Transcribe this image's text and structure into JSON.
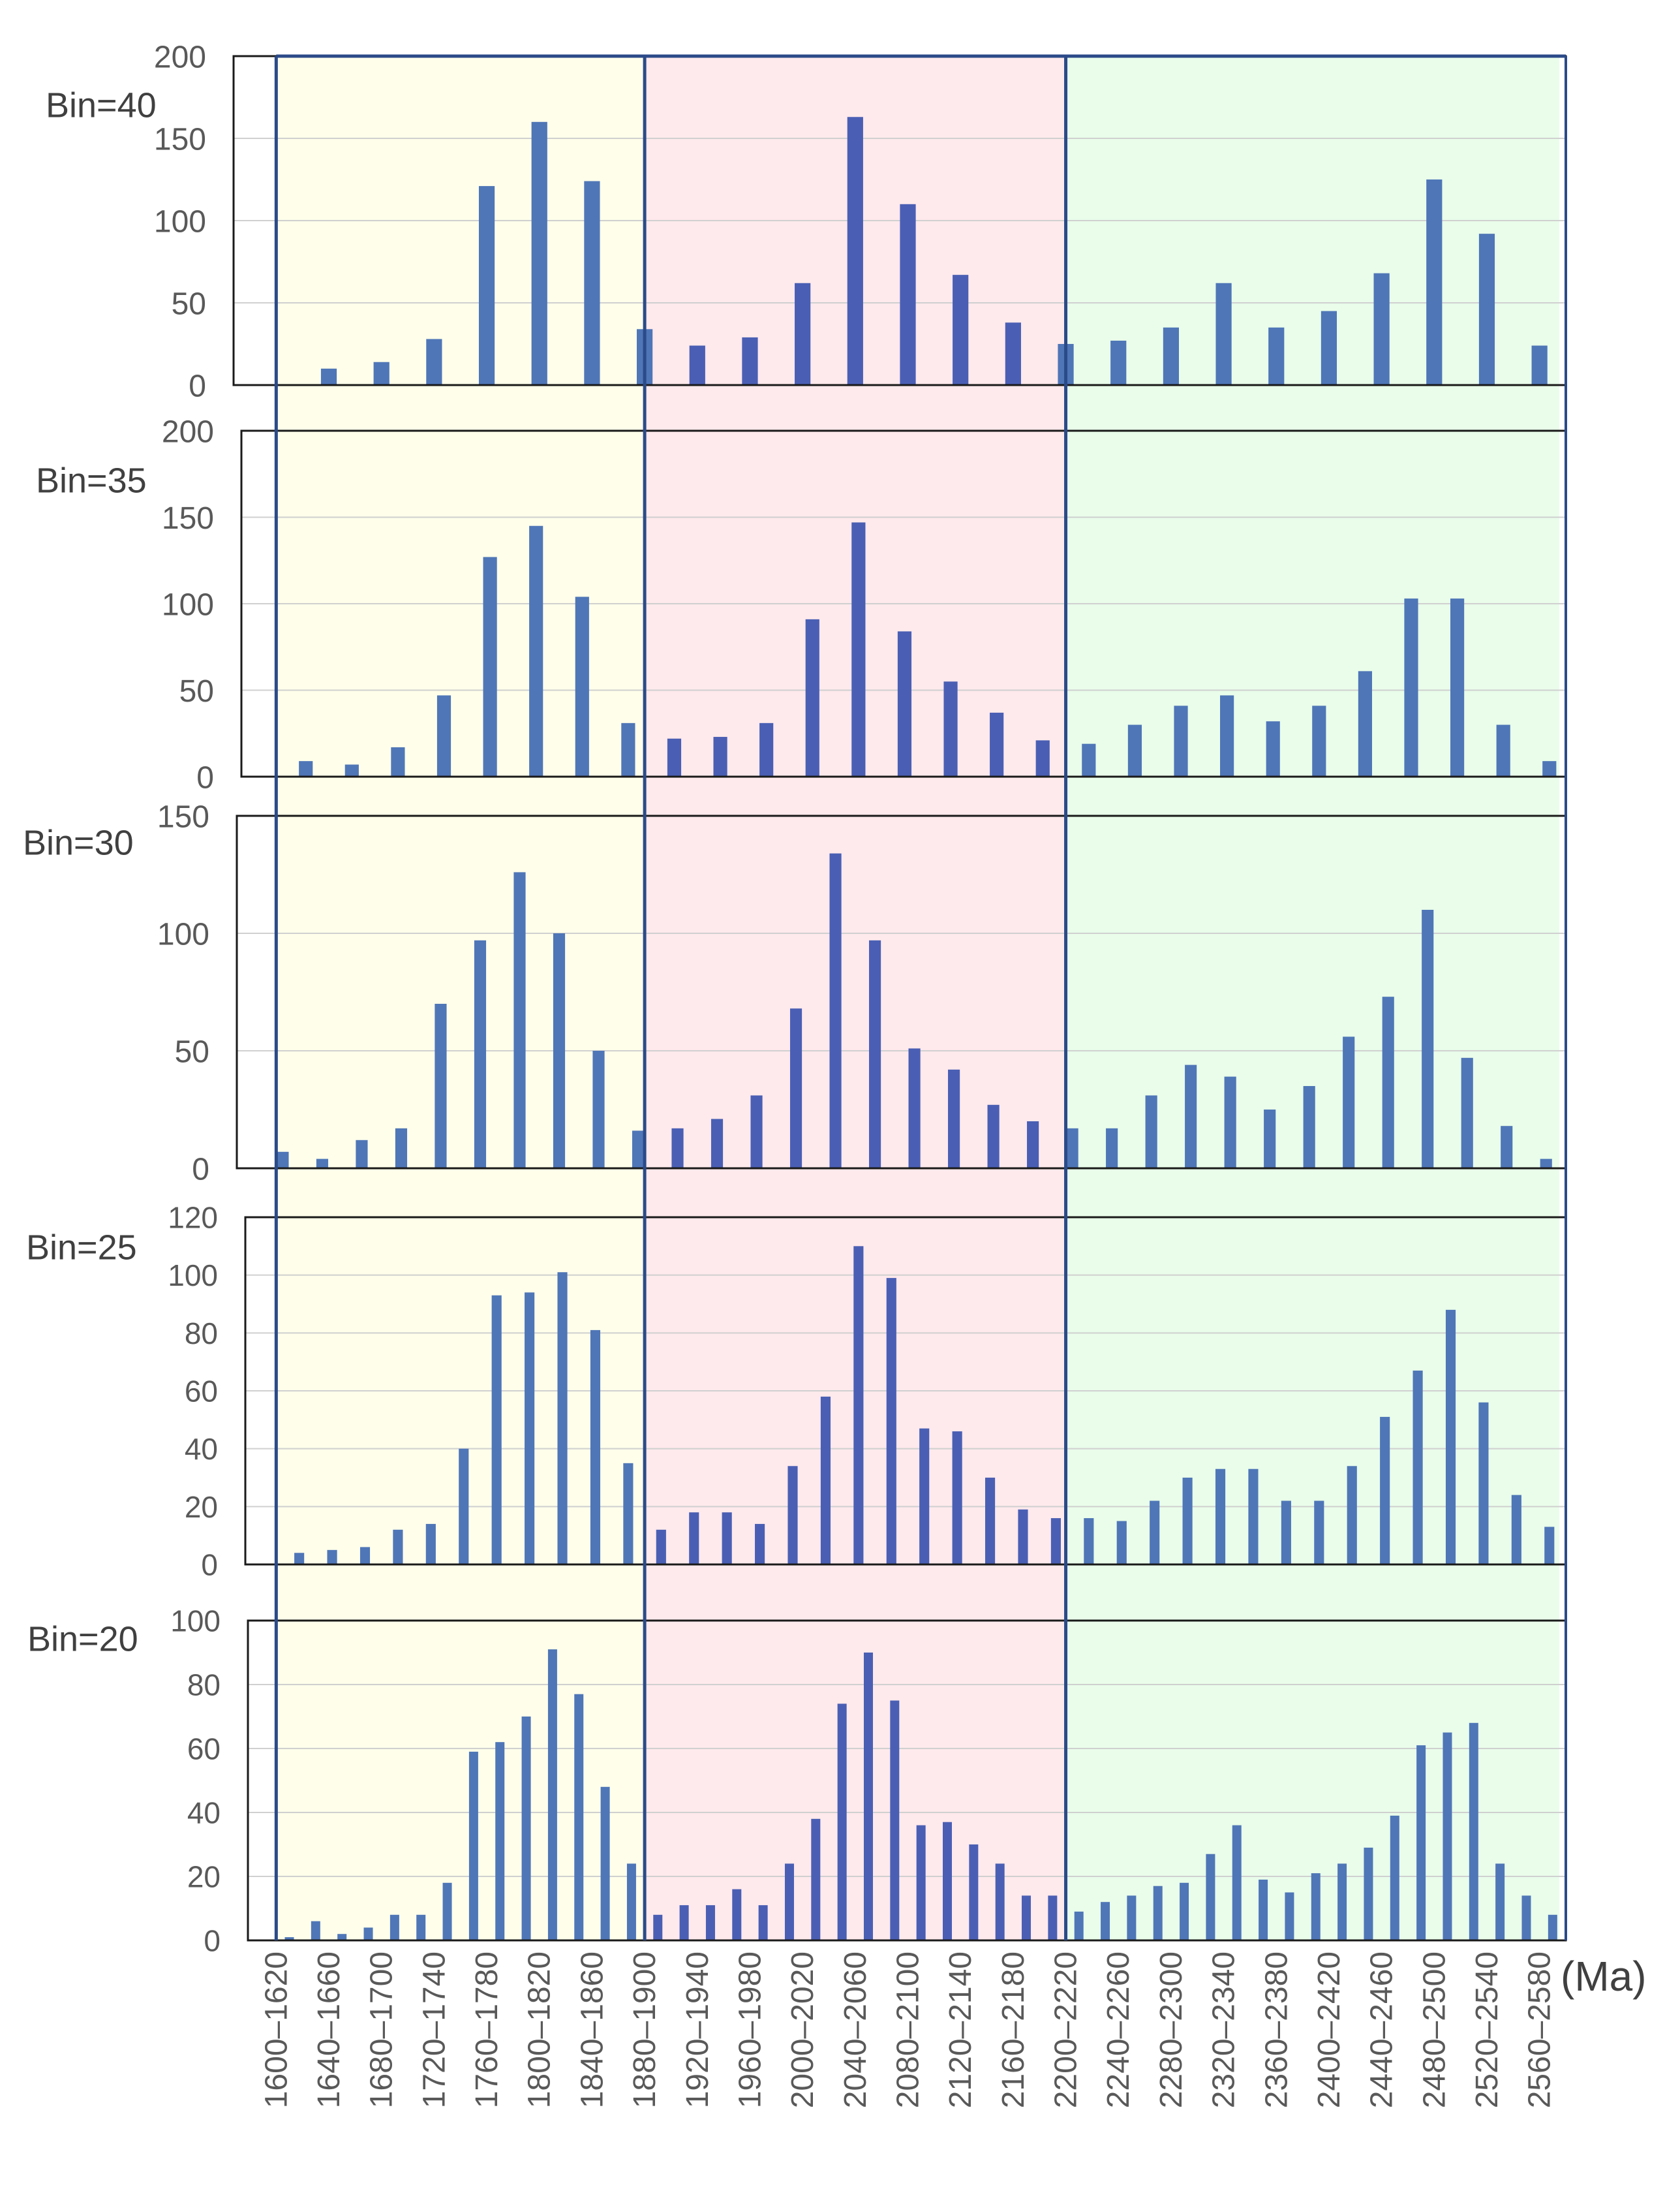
{
  "unit_label": "(Ma)",
  "colors": {
    "band_1": "#fefeea",
    "band_2": "#fee9ec",
    "band_3": "#e9fdea",
    "bar": "#4f76b7",
    "bar_mid": "#4a5fb4",
    "divider": "#2b4a88",
    "grid": "#d0d0d0",
    "tick_text": "#595959",
    "title_text": "#404040"
  },
  "x_tick_labels": [
    "1600–1620",
    "1640–1660",
    "1680–1700",
    "1720–1740",
    "1760–1780",
    "1800–1820",
    "1840–1860",
    "1880–1900",
    "1920–1940",
    "1960–1980",
    "2000–2020",
    "2040–2060",
    "2080–2100",
    "2120–2140",
    "2160–2180",
    "2200–2220",
    "2240–2260",
    "2280–2300",
    "2320–2340",
    "2360–2380",
    "2400–2420",
    "2440–2460",
    "2480–2500",
    "2520–2540",
    "2560–2580"
  ],
  "bands": [
    {
      "from": 1620,
      "to": 1900
    },
    {
      "from": 1900,
      "to": 2220
    },
    {
      "from": 2220,
      "to": 2595
    }
  ],
  "x_range_ma": [
    1600,
    2600
  ],
  "chart_data": [
    {
      "type": "bar",
      "title": "Bin=40",
      "bin_width": 40,
      "ylim": [
        0,
        200
      ],
      "yticks": [
        0,
        50,
        100,
        150,
        200
      ],
      "bin_starts": [
        1640,
        1680,
        1720,
        1760,
        1800,
        1840,
        1880,
        1920,
        1960,
        2000,
        2040,
        2080,
        2120,
        2160,
        2200,
        2240,
        2280,
        2320,
        2360,
        2400,
        2440,
        2480,
        2520,
        2560
      ],
      "values": [
        10,
        14,
        28,
        121,
        160,
        124,
        34,
        24,
        29,
        62,
        163,
        110,
        67,
        38,
        25,
        27,
        35,
        62,
        35,
        45,
        68,
        125,
        92,
        24
      ],
      "xlabel": "(Ma)",
      "ylabel": ""
    },
    {
      "type": "bar",
      "title": "Bin=35",
      "bin_width": 35,
      "ylim": [
        0,
        200
      ],
      "yticks": [
        0,
        50,
        100,
        150,
        200
      ],
      "bin_starts": [
        1625,
        1660,
        1695,
        1730,
        1765,
        1800,
        1835,
        1870,
        1905,
        1940,
        1975,
        2010,
        2045,
        2080,
        2115,
        2150,
        2185,
        2220,
        2255,
        2290,
        2325,
        2360,
        2395,
        2430,
        2465,
        2500,
        2535,
        2570
      ],
      "values": [
        9,
        7,
        17,
        47,
        127,
        145,
        104,
        31,
        22,
        23,
        31,
        91,
        147,
        84,
        55,
        37,
        21,
        19,
        30,
        41,
        47,
        32,
        41,
        61,
        103,
        103,
        30,
        9
      ],
      "xlabel": "(Ma)",
      "ylabel": ""
    },
    {
      "type": "bar",
      "title": "Bin=30",
      "bin_width": 30,
      "ylim": [
        0,
        150
      ],
      "yticks": [
        0,
        50,
        100,
        150
      ],
      "bin_starts": [
        1610,
        1640,
        1670,
        1700,
        1730,
        1760,
        1790,
        1820,
        1850,
        1880,
        1910,
        1940,
        1970,
        2000,
        2030,
        2060,
        2090,
        2120,
        2150,
        2180,
        2210,
        2240,
        2270,
        2300,
        2330,
        2360,
        2390,
        2420,
        2450,
        2480,
        2510,
        2540,
        2570
      ],
      "values": [
        7,
        4,
        12,
        17,
        70,
        97,
        126,
        100,
        50,
        16,
        17,
        21,
        31,
        68,
        134,
        97,
        51,
        42,
        27,
        20,
        17,
        17,
        31,
        44,
        39,
        25,
        35,
        56,
        73,
        110,
        47,
        18,
        4
      ],
      "xlabel": "(Ma)",
      "ylabel": ""
    },
    {
      "type": "bar",
      "title": "Bin=25",
      "bin_width": 25,
      "ylim": [
        0,
        120
      ],
      "yticks": [
        0,
        20,
        40,
        60,
        80,
        100,
        120
      ],
      "bin_starts": [
        1625,
        1650,
        1675,
        1700,
        1725,
        1750,
        1775,
        1800,
        1825,
        1850,
        1875,
        1900,
        1925,
        1950,
        1975,
        2000,
        2025,
        2050,
        2075,
        2100,
        2125,
        2150,
        2175,
        2200,
        2225,
        2250,
        2275,
        2300,
        2325,
        2350,
        2375,
        2400,
        2425,
        2450,
        2475,
        2500,
        2525,
        2550,
        2575
      ],
      "values": [
        4,
        5,
        6,
        12,
        14,
        40,
        93,
        94,
        101,
        81,
        35,
        12,
        18,
        18,
        14,
        34,
        58,
        110,
        99,
        47,
        46,
        30,
        19,
        16,
        16,
        15,
        22,
        30,
        33,
        33,
        22,
        22,
        34,
        51,
        67,
        88,
        56,
        24,
        13
      ],
      "xlabel": "(Ma)",
      "ylabel": ""
    },
    {
      "type": "bar",
      "title": "Bin=20",
      "bin_width": 20,
      "ylim": [
        0,
        100
      ],
      "yticks": [
        0,
        20,
        40,
        60,
        80,
        100
      ],
      "bin_starts": [
        1620,
        1640,
        1660,
        1680,
        1700,
        1720,
        1740,
        1760,
        1780,
        1800,
        1820,
        1840,
        1860,
        1880,
        1900,
        1920,
        1940,
        1960,
        1980,
        2000,
        2020,
        2040,
        2060,
        2080,
        2100,
        2120,
        2140,
        2160,
        2180,
        2200,
        2220,
        2240,
        2260,
        2280,
        2300,
        2320,
        2340,
        2360,
        2380,
        2400,
        2420,
        2440,
        2460,
        2480,
        2500,
        2520,
        2540,
        2560,
        2580
      ],
      "values": [
        1,
        6,
        2,
        4,
        8,
        8,
        18,
        59,
        62,
        70,
        91,
        77,
        48,
        24,
        8,
        11,
        11,
        16,
        11,
        24,
        38,
        74,
        90,
        75,
        36,
        37,
        30,
        24,
        14,
        14,
        9,
        12,
        14,
        17,
        18,
        27,
        36,
        19,
        15,
        21,
        24,
        29,
        39,
        61,
        65,
        68,
        24,
        14,
        8
      ],
      "xlabel": "(Ma)",
      "ylabel": ""
    }
  ]
}
